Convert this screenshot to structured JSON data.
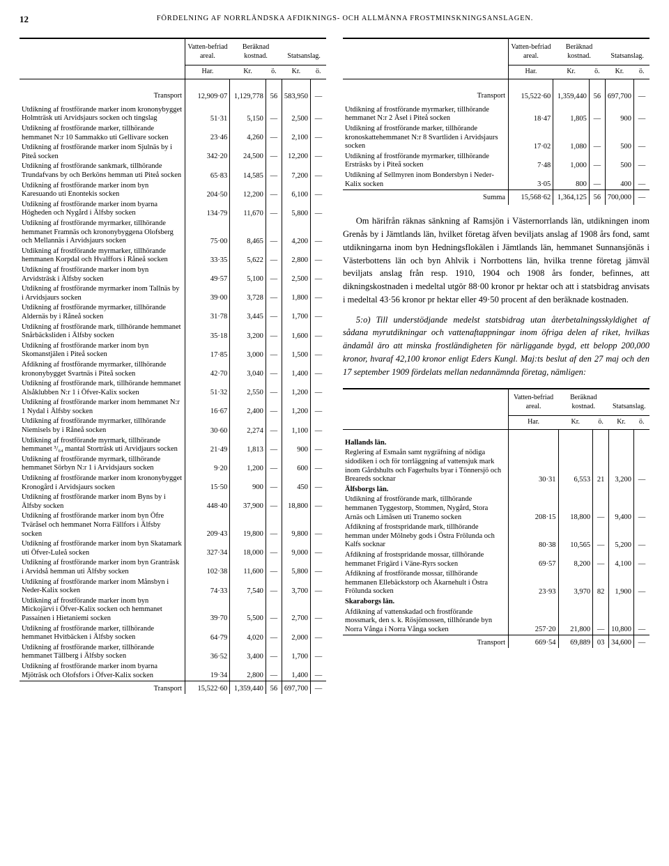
{
  "page_number": "12",
  "page_title": "FÖRDELNING AF NORRLÄNDSKA AFDIKNINGS- OCH ALLMÄNNA FROSTMINSKNINGSANSLAGEN.",
  "headers": {
    "col1": "Vatten-befriad areal.",
    "col2": "Beräknad kostnad.",
    "col3": "Statsanslag.",
    "sub_har": "Har.",
    "sub_kr": "Kr.",
    "sub_o": "ö."
  },
  "left_transport_top": {
    "label": "Transport",
    "har": "12,909·07",
    "kr": "1,129,778",
    "o": "56",
    "skr": "583,950",
    "so": "—"
  },
  "left_rows": [
    {
      "desc": "Utdikning af frostförande marker inom krononybygget Holmträsk uti Arvidsjaurs socken och tingslag",
      "har": "51·31",
      "kr": "5,150",
      "o": "—",
      "skr": "2,500",
      "so": "—"
    },
    {
      "desc": "Utdikning af frostförande marker, tillhörande hemmanet N:r 10 Sammakko uti Gellivare socken",
      "har": "23·46",
      "kr": "4,260",
      "o": "—",
      "skr": "2,100",
      "so": "—"
    },
    {
      "desc": "Utdikning af frostförande marker inom Sjulnäs by i Piteå socken",
      "har": "342·20",
      "kr": "24,500",
      "o": "—",
      "skr": "12,200",
      "so": "—"
    },
    {
      "desc": "Utdikning af frostförande sankmark, tillhörande Trundafvans by och Berköns hemman uti Piteå socken",
      "har": "65·83",
      "kr": "14,585",
      "o": "—",
      "skr": "7,200",
      "so": "—"
    },
    {
      "desc": "Utdikning af frostförande marker inom byn Karesuando uti Enontekis socken",
      "har": "204·50",
      "kr": "12,200",
      "o": "—",
      "skr": "6,100",
      "so": "—"
    },
    {
      "desc": "Utdikning af frostförande marker inom byarna Högheden och Nygård i Älfsby socken",
      "har": "134·79",
      "kr": "11,670",
      "o": "—",
      "skr": "5,800",
      "so": "—"
    },
    {
      "desc": "Utdikning af frostförande myrmarker, tillhörande hemmanet Framnäs och krononybyggena Olofsberg och Mellannäs i Arvidsjaurs socken",
      "har": "75·00",
      "kr": "8,465",
      "o": "—",
      "skr": "4,200",
      "so": "—"
    },
    {
      "desc": "Utdikning af frostförande myrmarker, tillhörande hemmanen Korpdal och Hvalffors i Råneå socken",
      "har": "33·35",
      "kr": "5,622",
      "o": "—",
      "skr": "2,800",
      "so": "—"
    },
    {
      "desc": "Utdikning af frostförande marker inom byn Arvidsträsk i Älfsby socken",
      "har": "49·57",
      "kr": "5,100",
      "o": "—",
      "skr": "2,500",
      "so": "—"
    },
    {
      "desc": "Utdikning af frostförande myrmarker inom Tallnäs by i Arvidsjaurs socken",
      "har": "39·00",
      "kr": "3,728",
      "o": "—",
      "skr": "1,800",
      "so": "—"
    },
    {
      "desc": "Utdikning af frostförande myrmarker, tillhörande Aldernäs by i Råneå socken",
      "har": "31·78",
      "kr": "3,445",
      "o": "—",
      "skr": "1,700",
      "so": "—"
    },
    {
      "desc": "Utdikning af frostförande mark, tillhörande hemmanet Snårbäcksliden i Älfsby socken",
      "har": "35·18",
      "kr": "3,200",
      "o": "—",
      "skr": "1,600",
      "so": "—"
    },
    {
      "desc": "Utdikning af frostförande marker inom byn Skomanstjälen i Piteå socken",
      "har": "17·85",
      "kr": "3,000",
      "o": "—",
      "skr": "1,500",
      "so": "—"
    },
    {
      "desc": "Afdikning af frostförande myrmarker, tillhörande krononybygget Svartnäs i Piteå socken",
      "har": "42·70",
      "kr": "3,040",
      "o": "—",
      "skr": "1,400",
      "so": "—"
    },
    {
      "desc": "Utdikning af frostförande mark, tillhörande hemmanet Alsåklubben N:r 1 i Öfver-Kalix socken",
      "har": "51·32",
      "kr": "2,550",
      "o": "—",
      "skr": "1,200",
      "so": "—"
    },
    {
      "desc": "Utdikning af frostförande marker inom hemmanet N:r 1 Nydal i Älfsby socken",
      "har": "16·67",
      "kr": "2,400",
      "o": "—",
      "skr": "1,200",
      "so": "—"
    },
    {
      "desc": "Utdikning af frostförande myrmarker, tillhörande Niemisels by i Råneå socken",
      "har": "30·60",
      "kr": "2,274",
      "o": "—",
      "skr": "1,100",
      "so": "—"
    },
    {
      "desc": "Utdikning af frostförande myrmark, tillhörande hemmanet ³/₆₄ mantal Storträsk uti Arvidjaurs socken",
      "har": "21·49",
      "kr": "1,813",
      "o": "—",
      "skr": "900",
      "so": "—"
    },
    {
      "desc": "Utdikning af frostförande myrmark, tillhörande hemmanet Sörbyn N:r 1 i Arvidsjaurs socken",
      "har": "9·20",
      "kr": "1,200",
      "o": "—",
      "skr": "600",
      "so": "—"
    },
    {
      "desc": "Utdikning af frostförande marker inom krononybygget Kronogård i Arvidsjaurs socken",
      "har": "15·50",
      "kr": "900",
      "o": "—",
      "skr": "450",
      "so": "—"
    },
    {
      "desc": "Utdikning af frostförande marker inom Byns by i Älfsby socken",
      "har": "448·40",
      "kr": "37,900",
      "o": "—",
      "skr": "18,800",
      "so": "—"
    },
    {
      "desc": "Utdikning af frostförande marker inom byn Öfre Tväråsel och hemmanet Norra Fällfors i Älfsby socken",
      "har": "209·43",
      "kr": "19,800",
      "o": "—",
      "skr": "9,800",
      "so": "—"
    },
    {
      "desc": "Utdikning af frostförande marker inom byn Skatamark uti Öfver-Luleå socken",
      "har": "327·34",
      "kr": "18,000",
      "o": "—",
      "skr": "9,000",
      "so": "—"
    },
    {
      "desc": "Utdikning af frostförande marker inom byn Granträsk i Arvidså hemman uti Älfsby socken",
      "har": "102·38",
      "kr": "11,600",
      "o": "—",
      "skr": "5,800",
      "so": "—"
    },
    {
      "desc": "Utdikning af frostförande marker inom Månsbyn i Neder-Kalix socken",
      "har": "74·33",
      "kr": "7,540",
      "o": "—",
      "skr": "3,700",
      "so": "—"
    },
    {
      "desc": "Utdikning af frostförande marker inom byn Mickojärvi i Öfver-Kalix socken och hemmanet Passainen i Hietaniemi socken",
      "har": "39·70",
      "kr": "5,500",
      "o": "—",
      "skr": "2,700",
      "so": "—"
    },
    {
      "desc": "Utdikning af frostförande marker, tillhörande hemmanet Hvitbäcken i Älfsby socken",
      "har": "64·79",
      "kr": "4,020",
      "o": "—",
      "skr": "2,000",
      "so": "—"
    },
    {
      "desc": "Utdikning af frostförande marker, tillhörande hemmanet Tällberg i Älfsby socken",
      "har": "36·52",
      "kr": "3,400",
      "o": "—",
      "skr": "1,700",
      "so": "—"
    },
    {
      "desc": "Utdikning af frostförande marker inom byarna Mjöträsk och Olofsfors i Öfver-Kalix socken",
      "har": "19·34",
      "kr": "2,800",
      "o": "—",
      "skr": "1,400",
      "so": "—"
    }
  ],
  "left_transport_bottom": {
    "label": "Transport",
    "har": "15,522·60",
    "kr": "1,359,440",
    "o": "56",
    "skr": "697,700",
    "so": "—"
  },
  "right_transport_top": {
    "label": "Transport",
    "har": "15,522·60",
    "kr": "1,359,440",
    "o": "56",
    "skr": "697,700",
    "so": "—"
  },
  "right_rows": [
    {
      "desc": "Utdikning af frostförande myrmarker, tillhörande hemmanet N:r 2 Åsel i Piteå socken",
      "har": "18·47",
      "kr": "1,805",
      "o": "—",
      "skr": "900",
      "so": "—"
    },
    {
      "desc": "Utdikning af frostförande marker, tillhörande kronoskattehemmanet N:r 8 Svartliden i Arvidsjaurs socken",
      "har": "17·02",
      "kr": "1,080",
      "o": "—",
      "skr": "500",
      "so": "—"
    },
    {
      "desc": "Utdikning af frostförande myrmarker, tillhörande Ersträsks by i Piteå socken",
      "har": "7·48",
      "kr": "1,000",
      "o": "—",
      "skr": "500",
      "so": "—"
    },
    {
      "desc": "Utdikning af Sellmyren inom Bondersbyn i Neder-Kalix socken",
      "har": "3·05",
      "kr": "800",
      "o": "—",
      "skr": "400",
      "so": "—"
    }
  ],
  "right_summa": {
    "label": "Summa",
    "har": "15,568·62",
    "kr": "1,364,125",
    "o": "56",
    "skr": "700,000",
    "so": "—"
  },
  "body_p1": "Om härifrån räknas sänkning af Ramsjön i Västernorrlands län, utdikningen inom Grenås by i Jämtlands län, hvilket företag äfven beviljats anslag af 1908 års fond, samt utdikningarna inom byn Hedningsflokälen i Jämtlands län, hemmanet Sunnansjönäs i Västerbottens län och byn Ahlvik i Norrbottens län, hvilka trenne företag jämväl beviljats anslag från resp. 1910, 1904 och 1908 års fonder, befinnes, att dikningskostnaden i medeltal utgör 88·00 kronor pr hektar och att i statsbidrag anvisats i medeltal 43·56 kronor pr hektar eller 49·50 procent af den beräknade kostnaden.",
  "body_p2": "5:o) Till understödjande medelst statsbidrag utan återbetalningsskyldighet af sådana myrutdikningar och vattenaftappningar inom öfriga delen af riket, hvilkas ändamål äro att minska frostländigheten för närliggande bygd, ett belopp 200,000 kronor, hvaraf 42,100 kronor enligt Eders Kungl. Maj:ts beslut af den 27 maj och den 17 september 1909 fördelats mellan nedannämnda företag, nämligen:",
  "sections": [
    {
      "title": "Hallands län.",
      "rows": [
        {
          "desc": "Reglering af Esmaån samt nygräfning af nödiga sidodiken i och för torrläggning af vattensjuk mark inom Gårdshults och Fagerhults byar i Tönnersjö och Breareds socknar",
          "har": "30·31",
          "kr": "6,553",
          "o": "21",
          "skr": "3,200",
          "so": "—"
        }
      ]
    },
    {
      "title": "Älfsborgs län.",
      "rows": [
        {
          "desc": "Utdikning af frostförande mark, tillhörande hemmanen Tyggestorp, Stommen, Nygård, Stora Arnäs och Limåsen uti Tranemo socken",
          "har": "208·15",
          "kr": "18,800",
          "o": "—",
          "skr": "9,400",
          "so": "—"
        },
        {
          "desc": "Afdikning af frostspridande mark, tillhörande hemman under Mölneby gods i Östra Frölunda och Kalfs socknar",
          "har": "80·38",
          "kr": "10,565",
          "o": "—",
          "skr": "5,200",
          "so": "—"
        },
        {
          "desc": "Afdikning af frostspridande mossar, tillhörande hemmanet Frigärd i Väne-Ryrs socken",
          "har": "69·57",
          "kr": "8,200",
          "o": "—",
          "skr": "4,100",
          "so": "—"
        },
        {
          "desc": "Afdikning af frostförande mossar, tillhörande hemmanen Ellebäckstorp och Åkarnehult i Östra Frölunda socken",
          "har": "23·93",
          "kr": "3,970",
          "o": "82",
          "skr": "1,900",
          "so": "—"
        }
      ]
    },
    {
      "title": "Skaraborgs län.",
      "rows": [
        {
          "desc": "Afdikning af vattenskadad och frostförande mossmark, den s. k. Rösjömossen, tillhörande byn Norra Vånga i Norra Vånga socken",
          "har": "257·20",
          "kr": "21,800",
          "o": "—",
          "skr": "10,800",
          "so": "—"
        }
      ]
    }
  ],
  "right_transport_bottom": {
    "label": "Transport",
    "har": "669·54",
    "kr": "69,889",
    "o": "03",
    "skr": "34,600",
    "so": "—"
  }
}
